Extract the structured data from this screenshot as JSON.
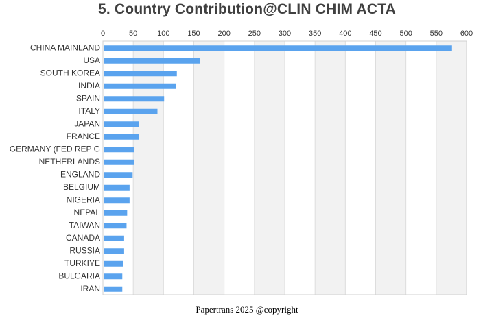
{
  "chart_data": {
    "type": "bar",
    "orientation": "horizontal",
    "title": "5. Country Contribution@CLIN CHIM ACTA",
    "categories": [
      "CHINA MAINLAND",
      "USA",
      "SOUTH KOREA",
      "INDIA",
      "SPAIN",
      "ITALY",
      "JAPAN",
      "FRANCE",
      "GERMANY (FED REP G",
      "NETHERLANDS",
      "ENGLAND",
      "BELGIUM",
      "NIGERIA",
      "NEPAL",
      "TAIWAN",
      "CANADA",
      "RUSSIA",
      "TURKIYE",
      "BULGARIA",
      "IRAN"
    ],
    "values": [
      576,
      160,
      122,
      120,
      101,
      90,
      60,
      59,
      52,
      52,
      49,
      44,
      44,
      40,
      39,
      35,
      35,
      33,
      32,
      32
    ],
    "xlim": [
      0,
      600
    ],
    "x_ticks": [
      0,
      50,
      100,
      150,
      200,
      250,
      300,
      350,
      400,
      450,
      500,
      550,
      600
    ],
    "x_axis_position": "top",
    "grid": true,
    "legend": "none",
    "colors": {
      "bar": "#5aa3ee",
      "band_alt": "#f2f2f2",
      "band": "#ffffff",
      "gridline": "#dddddd",
      "axis_text": "#333333",
      "title": "#404040"
    }
  },
  "footer": {
    "text": "Papertrans 2025 @copyright"
  }
}
